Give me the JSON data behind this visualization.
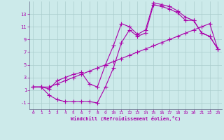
{
  "xlabel": "Windchill (Refroidissement éolien,°C)",
  "bg_color": "#cceaea",
  "line_color": "#aa00aa",
  "grid_color": "#aacccc",
  "xlim": [
    -0.5,
    23.5
  ],
  "ylim": [
    -2.0,
    15.0
  ],
  "xticks": [
    0,
    1,
    2,
    3,
    4,
    5,
    6,
    7,
    8,
    9,
    10,
    11,
    12,
    13,
    14,
    15,
    16,
    17,
    18,
    19,
    20,
    21,
    22,
    23
  ],
  "yticks": [
    -1,
    1,
    3,
    5,
    7,
    9,
    11,
    13
  ],
  "line1_x": [
    0,
    1,
    2,
    3,
    4,
    5,
    6,
    7,
    8,
    9,
    10,
    11,
    12,
    13,
    14,
    15,
    16,
    17,
    18,
    19,
    20,
    21,
    22,
    23
  ],
  "line1_y": [
    1.5,
    1.5,
    1.2,
    2.5,
    3.0,
    3.5,
    3.8,
    2.0,
    1.5,
    5.0,
    8.0,
    11.5,
    11.0,
    9.8,
    10.5,
    14.8,
    14.5,
    14.2,
    13.5,
    12.5,
    12.0,
    10.0,
    9.5,
    7.5
  ],
  "line2_x": [
    0,
    1,
    2,
    3,
    4,
    5,
    6,
    7,
    8,
    9,
    10,
    11,
    12,
    13,
    14,
    15,
    16,
    17,
    18,
    19,
    20,
    21,
    22,
    23
  ],
  "line2_y": [
    1.5,
    1.5,
    0.2,
    -0.5,
    -0.8,
    -0.8,
    -0.8,
    -0.8,
    -1.0,
    1.5,
    4.5,
    8.5,
    10.5,
    9.5,
    10.0,
    14.5,
    14.2,
    13.8,
    13.2,
    12.0,
    12.0,
    10.0,
    9.5,
    7.5
  ],
  "line3_x": [
    0,
    1,
    2,
    3,
    4,
    5,
    6,
    7,
    8,
    9,
    10,
    11,
    12,
    13,
    14,
    15,
    16,
    17,
    18,
    19,
    20,
    21,
    22,
    23
  ],
  "line3_y": [
    1.5,
    1.5,
    1.5,
    2.0,
    2.5,
    3.0,
    3.5,
    4.0,
    4.5,
    5.0,
    5.5,
    6.0,
    6.5,
    7.0,
    7.5,
    8.0,
    8.5,
    9.0,
    9.5,
    10.0,
    10.5,
    11.0,
    11.5,
    7.5
  ]
}
